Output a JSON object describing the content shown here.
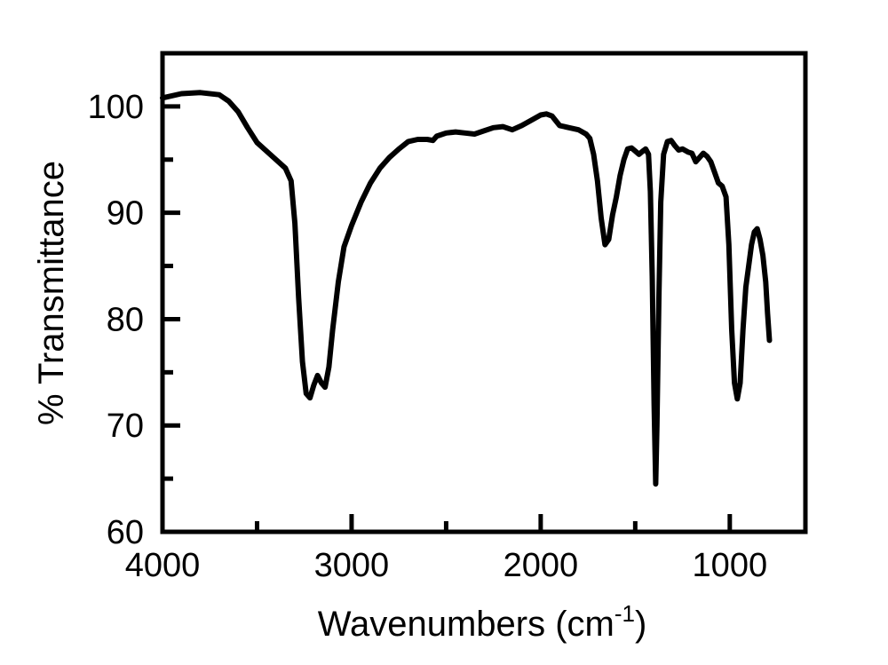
{
  "chart_data": {
    "type": "line",
    "xlabel": {
      "main": "Wavenumbers (cm",
      "superscript": "-1",
      "close": ")"
    },
    "ylabel": "% Transmittance",
    "xlim": [
      4000,
      600
    ],
    "ylim": [
      60,
      105
    ],
    "x_ticks": [
      {
        "value": 4000,
        "label": "4000"
      },
      {
        "value": 3000,
        "label": "3000"
      },
      {
        "value": 2000,
        "label": "2000"
      },
      {
        "value": 1000,
        "label": "1000"
      }
    ],
    "x_minor_ticks": [
      3500,
      2500,
      1500
    ],
    "y_ticks": [
      {
        "value": 60,
        "label": "60"
      },
      {
        "value": 70,
        "label": "70"
      },
      {
        "value": 80,
        "label": "80"
      },
      {
        "value": 90,
        "label": "90"
      },
      {
        "value": 100,
        "label": "100"
      }
    ],
    "y_minor_ticks": [
      65,
      75,
      85,
      95
    ],
    "grid": false,
    "line_color": "#000000",
    "series": [
      {
        "points": [
          [
            4000,
            100.8
          ],
          [
            3900,
            101.2
          ],
          [
            3800,
            101.3
          ],
          [
            3700,
            101.1
          ],
          [
            3650,
            100.5
          ],
          [
            3600,
            99.5
          ],
          [
            3550,
            98.0
          ],
          [
            3500,
            96.6
          ],
          [
            3450,
            95.8
          ],
          [
            3400,
            95.0
          ],
          [
            3350,
            94.2
          ],
          [
            3320,
            93.0
          ],
          [
            3300,
            89.0
          ],
          [
            3280,
            82.0
          ],
          [
            3260,
            76.0
          ],
          [
            3240,
            73.0
          ],
          [
            3220,
            72.6
          ],
          [
            3200,
            73.8
          ],
          [
            3180,
            74.7
          ],
          [
            3160,
            74.0
          ],
          [
            3140,
            73.6
          ],
          [
            3120,
            75.5
          ],
          [
            3100,
            79.0
          ],
          [
            3070,
            83.5
          ],
          [
            3040,
            86.8
          ],
          [
            3000,
            88.8
          ],
          [
            2950,
            91.0
          ],
          [
            2900,
            92.8
          ],
          [
            2850,
            94.2
          ],
          [
            2800,
            95.2
          ],
          [
            2750,
            96.0
          ],
          [
            2700,
            96.7
          ],
          [
            2650,
            96.9
          ],
          [
            2600,
            96.9
          ],
          [
            2570,
            96.8
          ],
          [
            2550,
            97.2
          ],
          [
            2500,
            97.5
          ],
          [
            2450,
            97.6
          ],
          [
            2400,
            97.5
          ],
          [
            2350,
            97.4
          ],
          [
            2300,
            97.7
          ],
          [
            2250,
            98.0
          ],
          [
            2200,
            98.1
          ],
          [
            2150,
            97.8
          ],
          [
            2100,
            98.2
          ],
          [
            2050,
            98.7
          ],
          [
            2000,
            99.2
          ],
          [
            1970,
            99.3
          ],
          [
            1940,
            99.1
          ],
          [
            1900,
            98.2
          ],
          [
            1850,
            98.0
          ],
          [
            1800,
            97.8
          ],
          [
            1760,
            97.4
          ],
          [
            1740,
            97.0
          ],
          [
            1720,
            95.5
          ],
          [
            1700,
            93.0
          ],
          [
            1680,
            89.5
          ],
          [
            1660,
            87.0
          ],
          [
            1640,
            87.5
          ],
          [
            1620,
            89.8
          ],
          [
            1600,
            91.5
          ],
          [
            1580,
            93.5
          ],
          [
            1560,
            95.0
          ],
          [
            1540,
            96.0
          ],
          [
            1520,
            96.1
          ],
          [
            1500,
            95.8
          ],
          [
            1480,
            95.5
          ],
          [
            1460,
            95.8
          ],
          [
            1445,
            96.0
          ],
          [
            1430,
            95.5
          ],
          [
            1420,
            92.0
          ],
          [
            1410,
            84.0
          ],
          [
            1400,
            72.0
          ],
          [
            1392,
            64.5
          ],
          [
            1385,
            70.0
          ],
          [
            1375,
            82.0
          ],
          [
            1365,
            91.0
          ],
          [
            1350,
            95.5
          ],
          [
            1330,
            96.7
          ],
          [
            1310,
            96.8
          ],
          [
            1290,
            96.3
          ],
          [
            1270,
            95.9
          ],
          [
            1250,
            96.0
          ],
          [
            1220,
            95.7
          ],
          [
            1200,
            95.6
          ],
          [
            1180,
            94.8
          ],
          [
            1160,
            95.2
          ],
          [
            1140,
            95.6
          ],
          [
            1120,
            95.3
          ],
          [
            1100,
            94.8
          ],
          [
            1080,
            93.8
          ],
          [
            1060,
            92.8
          ],
          [
            1040,
            92.5
          ],
          [
            1020,
            91.5
          ],
          [
            1005,
            87.0
          ],
          [
            990,
            79.0
          ],
          [
            975,
            74.0
          ],
          [
            960,
            72.5
          ],
          [
            945,
            74.0
          ],
          [
            930,
            79.0
          ],
          [
            915,
            83.0
          ],
          [
            900,
            85.0
          ],
          [
            885,
            87.0
          ],
          [
            870,
            88.2
          ],
          [
            855,
            88.5
          ],
          [
            840,
            87.5
          ],
          [
            825,
            86.0
          ],
          [
            810,
            83.5
          ],
          [
            800,
            80.5
          ],
          [
            790,
            78.0
          ]
        ]
      }
    ]
  }
}
